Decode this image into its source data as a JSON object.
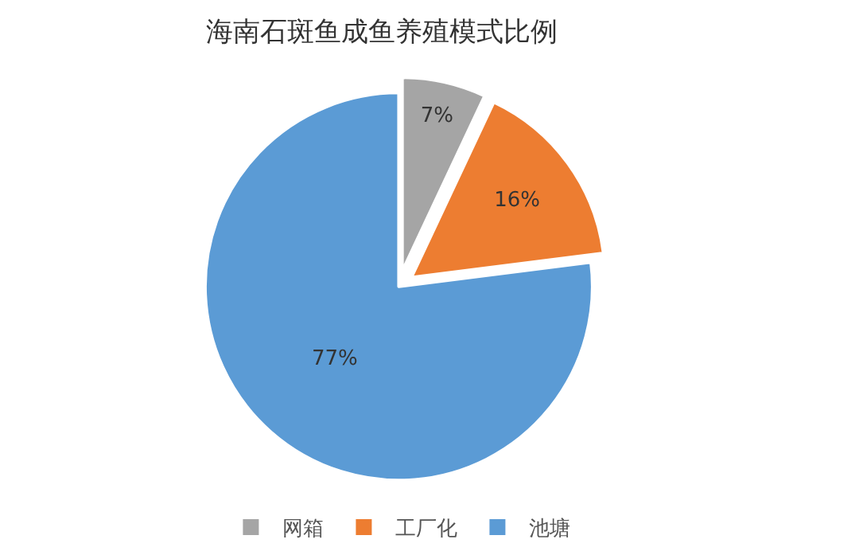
{
  "chart_data": {
    "type": "pie",
    "title": "海南石斑鱼成鱼养殖模式比例",
    "categories": [
      "网箱",
      "工厂化",
      "池塘"
    ],
    "values": [
      7,
      16,
      77
    ],
    "value_labels": [
      "7%",
      "16%",
      "77%"
    ],
    "colors": [
      "#a5a5a5",
      "#ed7d31",
      "#5b9bd5"
    ],
    "legend": "bottom"
  }
}
